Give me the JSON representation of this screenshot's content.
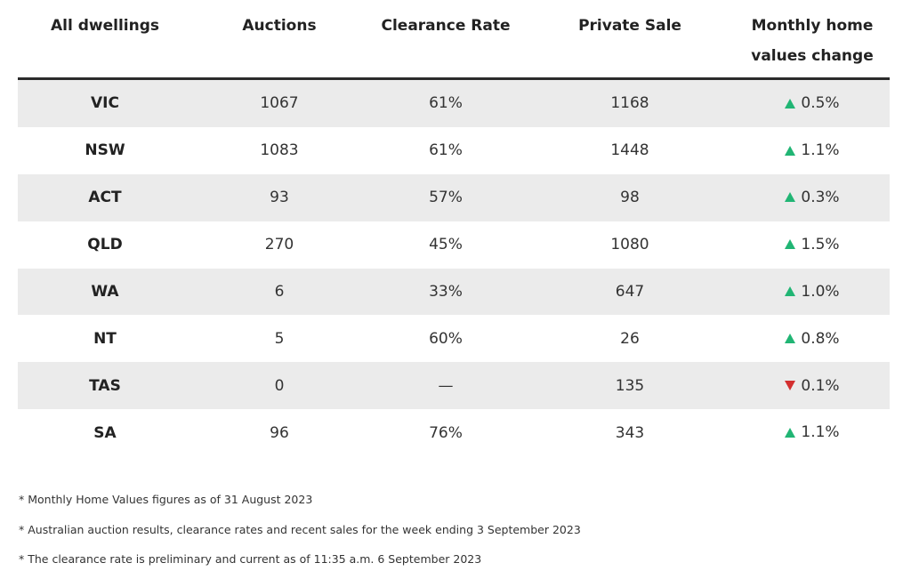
{
  "table": {
    "headers": [
      "All dwellings",
      "Auctions",
      "Clearance Rate",
      "Private Sale",
      "Monthly home values change"
    ],
    "rows": [
      {
        "state": "VIC",
        "auctions": "1067",
        "clearance": "61%",
        "private": "1168",
        "change": "0.5%",
        "direction": "up"
      },
      {
        "state": "NSW",
        "auctions": "1083",
        "clearance": "61%",
        "private": "1448",
        "change": "1.1%",
        "direction": "up"
      },
      {
        "state": "ACT",
        "auctions": "93",
        "clearance": "57%",
        "private": "98",
        "change": "0.3%",
        "direction": "up"
      },
      {
        "state": "QLD",
        "auctions": "270",
        "clearance": "45%",
        "private": "1080",
        "change": "1.5%",
        "direction": "up"
      },
      {
        "state": "WA",
        "auctions": "6",
        "clearance": "33%",
        "private": "647",
        "change": "1.0%",
        "direction": "up"
      },
      {
        "state": "NT",
        "auctions": "5",
        "clearance": "60%",
        "private": "26",
        "change": "0.8%",
        "direction": "up"
      },
      {
        "state": "TAS",
        "auctions": "0",
        "clearance": "—",
        "private": "135",
        "change": "0.1%",
        "direction": "down"
      },
      {
        "state": "SA",
        "auctions": "96",
        "clearance": "76%",
        "private": "343",
        "change": "1.1%",
        "direction": "up"
      }
    ]
  },
  "colors": {
    "up": "#21b574",
    "down": "#d32f2f",
    "row_shade": "#ebebeb",
    "header_rule": "#2b2b2b"
  },
  "icons": {
    "up": "triangle-up-icon",
    "down": "triangle-down-icon"
  },
  "notes": [
    "* Monthly Home Values figures as of 31 August 2023",
    "* Australian auction results, clearance rates and recent sales for the week ending 3 September 2023",
    "* The clearance rate is preliminary and current as of 11:35 a.m. 6 September 2023"
  ]
}
